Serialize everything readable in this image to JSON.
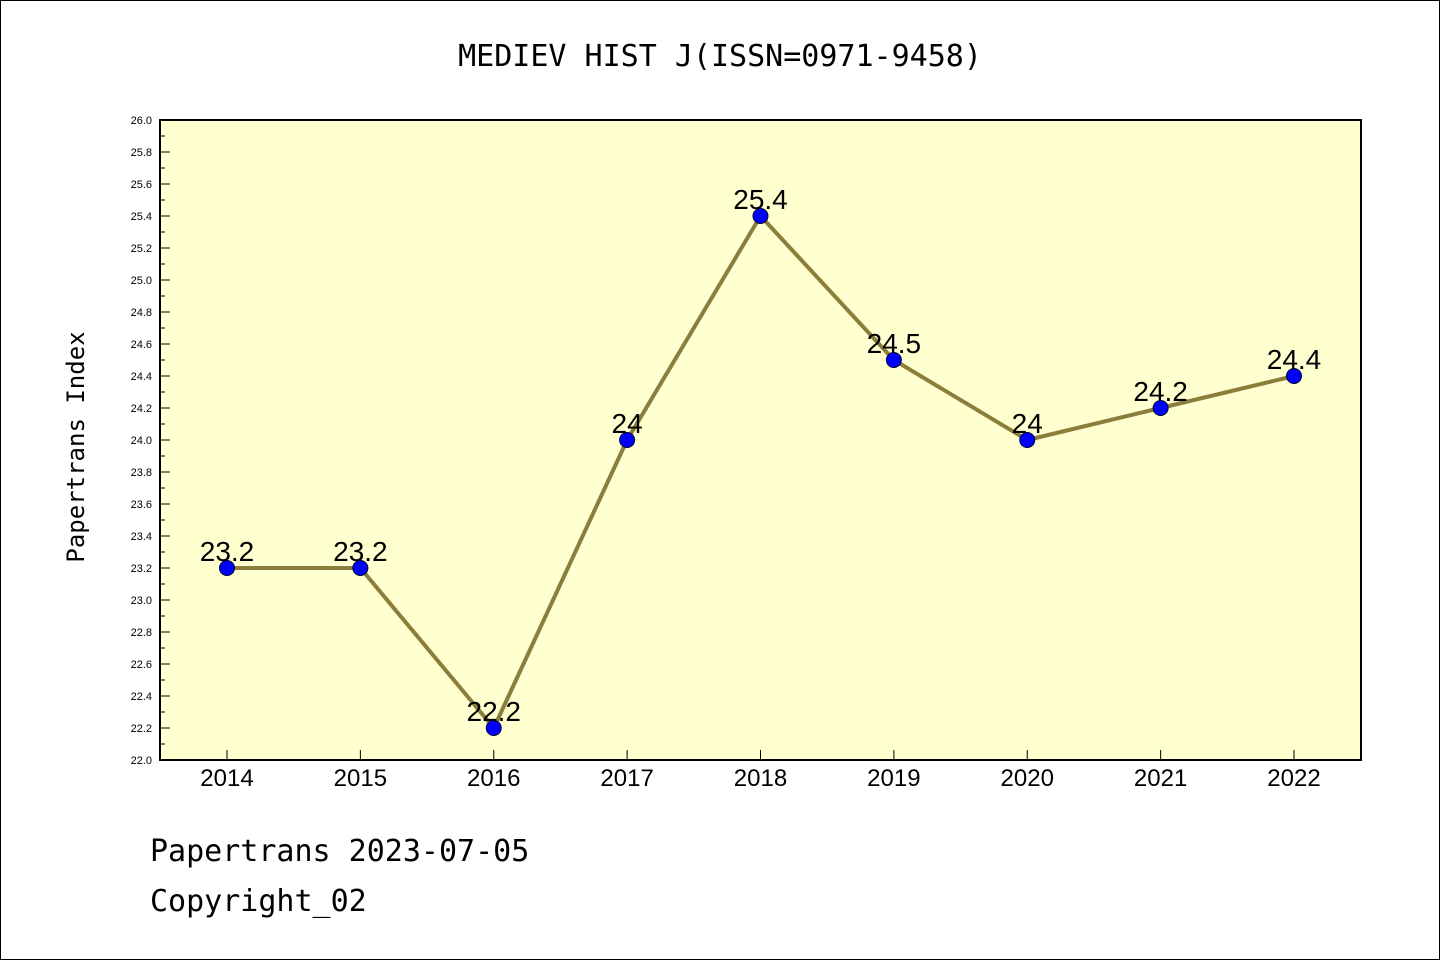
{
  "chart_data": {
    "type": "line",
    "title": "MEDIEV HIST J(ISSN=0971-9458)",
    "ylabel": "Papertrans Index",
    "xlabel": "",
    "x": [
      "2014",
      "2015",
      "2016",
      "2017",
      "2018",
      "2019",
      "2020",
      "2021",
      "2022"
    ],
    "series": [
      {
        "values": [
          23.2,
          23.2,
          22.2,
          24.0,
          25.4,
          24.5,
          24.0,
          24.2,
          24.4
        ],
        "labels": [
          "23.2",
          "23.2",
          "22.2",
          "24",
          "25.4",
          "24.5",
          "24",
          "24.2",
          "24.4"
        ]
      }
    ],
    "ylim": [
      22.0,
      26.0
    ],
    "yticks": [
      "22.0",
      "22.2",
      "22.4",
      "22.6",
      "22.8",
      "23.0",
      "23.2",
      "23.4",
      "23.6",
      "23.8",
      "24.0",
      "24.2",
      "24.4",
      "24.6",
      "24.8",
      "25.0",
      "25.2",
      "25.4",
      "25.6",
      "25.8",
      "26.0"
    ],
    "grid": false,
    "colors": {
      "plot_background": "#ffffd0",
      "line": "#8b7d3a",
      "marker": "#0000ff"
    }
  },
  "footer": {
    "line1": "Papertrans 2023-07-05",
    "line2": "Copyright_02"
  }
}
